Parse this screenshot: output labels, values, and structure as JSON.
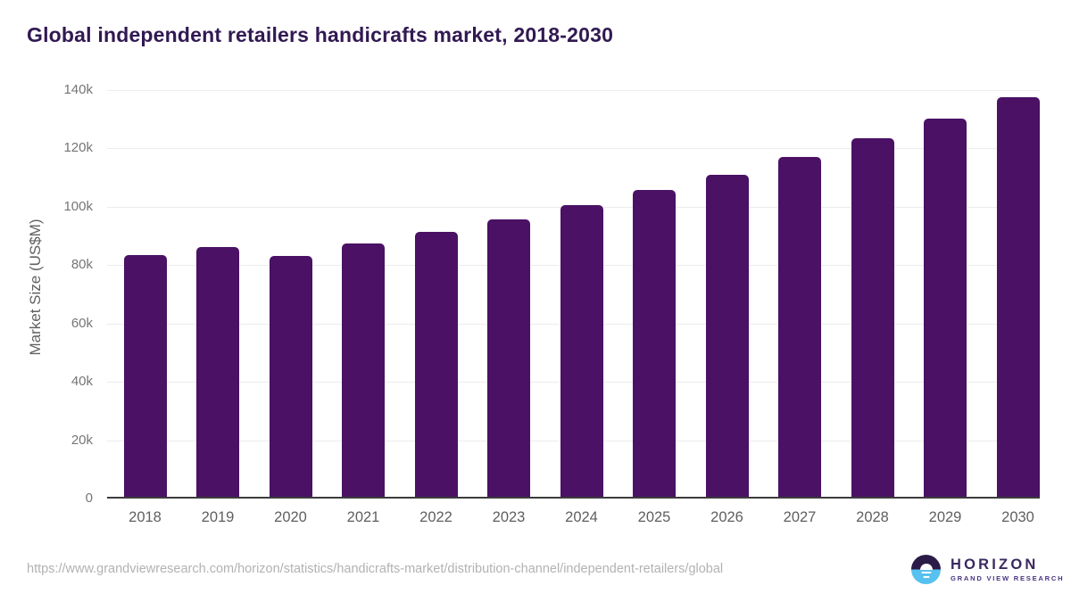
{
  "title": "Global independent retailers handicrafts market, 2018-2030",
  "chart_data": {
    "type": "bar",
    "title": "Global independent retailers handicrafts market, 2018-2030",
    "xlabel": "",
    "ylabel": "Market Size (US$M)",
    "ylim": [
      0,
      140000
    ],
    "grid": true,
    "legend": false,
    "bar_color": "#4a1164",
    "categories": [
      "2018",
      "2019",
      "2020",
      "2021",
      "2022",
      "2023",
      "2024",
      "2025",
      "2026",
      "2027",
      "2028",
      "2029",
      "2030"
    ],
    "values": [
      82900,
      85600,
      82400,
      86700,
      90900,
      95200,
      99900,
      105100,
      110500,
      116400,
      122800,
      129500,
      137000
    ],
    "yticks": [
      {
        "value": 0,
        "label": "0"
      },
      {
        "value": 20000,
        "label": "20k"
      },
      {
        "value": 40000,
        "label": "40k"
      },
      {
        "value": 60000,
        "label": "60k"
      },
      {
        "value": 80000,
        "label": "80k"
      },
      {
        "value": 100000,
        "label": "100k"
      },
      {
        "value": 120000,
        "label": "120k"
      },
      {
        "value": 140000,
        "label": "140k"
      }
    ]
  },
  "footer": {
    "source_url": "https://www.grandviewresearch.com/horizon/statistics/handicrafts-market/distribution-channel/independent-retailers/global",
    "logo": {
      "name": "HORIZON",
      "subtitle": "GRAND VIEW RESEARCH"
    }
  },
  "colors": {
    "bar": "#4a1164",
    "title_text": "#311952",
    "gridline": "#ececec",
    "axis_line": "#3c3c3c",
    "y_tick_text": "#757575",
    "x_tick_text": "#5f5f5f",
    "url_text": "#b2b2b2",
    "logo_purple": "#2b1b47",
    "logo_blue": "#57c1ef"
  }
}
